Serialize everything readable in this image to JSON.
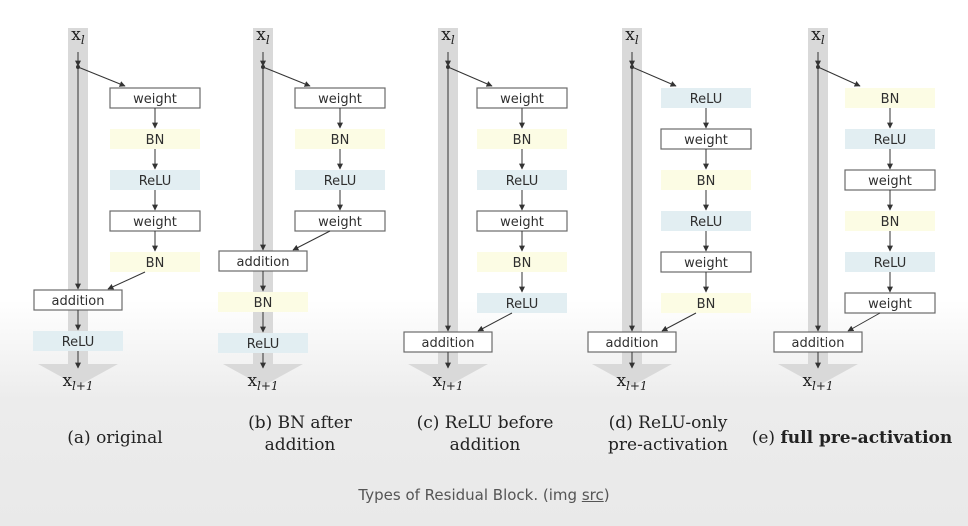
{
  "colors": {
    "weight_fill": "#ffffff",
    "bn_fill": "#fcfce4",
    "relu_fill": "#e2eef2",
    "addition_fill": "#ffffff",
    "stroke": "#6b6b6b",
    "text": "#2f2f2f",
    "shortcut_band": "#d9d9d9",
    "caption_text": "#555555"
  },
  "panels": [
    {
      "id": "a",
      "input_label": "x",
      "input_sub": "l",
      "output_label": "x",
      "output_sub": "l+1",
      "branch": [
        "weight",
        "BN",
        "ReLU",
        "weight",
        "BN"
      ],
      "addition": "addition",
      "after_addition": [
        "ReLU"
      ],
      "caption_lines": [
        "(a) original"
      ],
      "caption_bold": false
    },
    {
      "id": "b",
      "input_label": "x",
      "input_sub": "l",
      "output_label": "x",
      "output_sub": "l+1",
      "branch": [
        "weight",
        "BN",
        "ReLU",
        "weight"
      ],
      "addition": "addition",
      "after_addition": [
        "BN",
        "ReLU"
      ],
      "caption_lines": [
        "(b) BN after",
        "addition"
      ],
      "caption_bold": false
    },
    {
      "id": "c",
      "input_label": "x",
      "input_sub": "l",
      "output_label": "x",
      "output_sub": "l+1",
      "branch": [
        "weight",
        "BN",
        "ReLU",
        "weight",
        "BN",
        "ReLU"
      ],
      "addition": "addition",
      "after_addition": [],
      "caption_lines": [
        "(c) ReLU before",
        "addition"
      ],
      "caption_bold": false
    },
    {
      "id": "d",
      "input_label": "x",
      "input_sub": "l",
      "output_label": "x",
      "output_sub": "l+1",
      "branch": [
        "ReLU",
        "weight",
        "BN",
        "ReLU",
        "weight",
        "BN"
      ],
      "addition": "addition",
      "after_addition": [],
      "caption_lines": [
        "(d) ReLU-only",
        "pre-activation"
      ],
      "caption_bold": false
    },
    {
      "id": "e",
      "input_label": "x",
      "input_sub": "l",
      "output_label": "x",
      "output_sub": "l+1",
      "branch": [
        "BN",
        "ReLU",
        "weight",
        "BN",
        "ReLU",
        "weight"
      ],
      "addition": "addition",
      "after_addition": [],
      "caption_prefix": "(e) ",
      "caption_lines": [
        "full pre-activation"
      ],
      "caption_bold": true
    }
  ],
  "caption": {
    "text": "Types of Residual Block. (img ",
    "link": "src",
    "suffix": ")"
  }
}
